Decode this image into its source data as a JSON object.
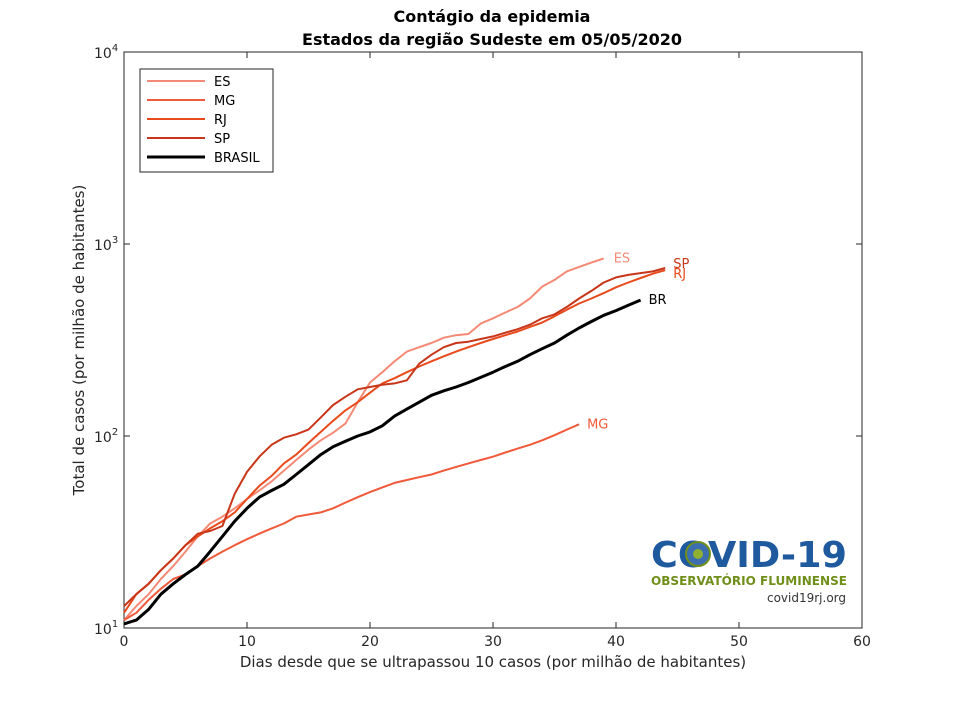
{
  "chart_data": {
    "type": "line",
    "title": "Contágio da epidemia",
    "subtitle": "Estados da região Sudeste em 05/05/2020",
    "xlabel": "Dias desde que se ultrapassou 10 casos (por milhão de habitantes)",
    "ylabel": "Total de casos (por milhão de habitantes)",
    "xlim": [
      0,
      60
    ],
    "ylim": [
      10,
      10000
    ],
    "yscale": "log",
    "grid": false,
    "legend_position": "top-left",
    "x_ticks": [
      "0",
      "10",
      "20",
      "30",
      "40",
      "50",
      "60"
    ],
    "y_tick_base": "10",
    "y_tick_exponents": [
      "1",
      "2",
      "3",
      "4"
    ],
    "series": [
      {
        "name": "ES",
        "end_label": "ES",
        "color": "#f48a76",
        "x": [
          0,
          1,
          2,
          3,
          4,
          5,
          6,
          7,
          8,
          9,
          10,
          11,
          12,
          13,
          14,
          15,
          16,
          17,
          18,
          19,
          20,
          21,
          22,
          23,
          24,
          25,
          26,
          27,
          28,
          29,
          30,
          31,
          32,
          33,
          34,
          35,
          36,
          37,
          38,
          39
        ],
        "y": [
          11,
          13,
          15,
          18,
          21,
          25,
          30,
          35,
          38,
          42,
          47,
          52,
          58,
          66,
          75,
          85,
          95,
          104,
          116,
          150,
          190,
          215,
          245,
          275,
          290,
          305,
          325,
          335,
          340,
          385,
          410,
          440,
          470,
          520,
          600,
          650,
          720,
          760,
          800,
          840
        ]
      },
      {
        "name": "MG",
        "end_label": "MG",
        "color": "#f0593a",
        "x": [
          0,
          1,
          2,
          3,
          4,
          5,
          6,
          7,
          8,
          9,
          10,
          11,
          12,
          13,
          14,
          15,
          16,
          17,
          18,
          19,
          20,
          21,
          22,
          23,
          24,
          25,
          26,
          27,
          28,
          29,
          30,
          31,
          32,
          33,
          34,
          35,
          36,
          37
        ],
        "y": [
          11,
          12,
          14,
          16,
          18,
          19,
          21,
          23,
          25,
          27,
          29,
          31,
          33,
          35,
          38,
          39,
          40,
          42,
          45,
          48,
          51,
          54,
          57,
          59,
          61,
          63,
          66,
          69,
          72,
          75,
          78,
          82,
          86,
          90,
          95,
          101,
          108,
          115
        ]
      },
      {
        "name": "RJ",
        "end_label": "RJ",
        "color": "#e84a1c",
        "x": [
          0,
          1,
          2,
          3,
          4,
          5,
          6,
          7,
          8,
          9,
          10,
          11,
          12,
          13,
          14,
          15,
          16,
          17,
          18,
          19,
          20,
          21,
          22,
          23,
          24,
          25,
          26,
          27,
          28,
          29,
          30,
          31,
          32,
          33,
          34,
          35,
          36,
          37,
          38,
          39,
          40,
          41,
          42,
          43,
          44
        ],
        "y": [
          12,
          15,
          17,
          20,
          23,
          27,
          30,
          33,
          36,
          40,
          47,
          55,
          62,
          72,
          80,
          92,
          105,
          120,
          136,
          150,
          168,
          188,
          200,
          215,
          230,
          245,
          260,
          275,
          290,
          305,
          320,
          335,
          350,
          370,
          390,
          420,
          455,
          490,
          520,
          555,
          595,
          630,
          665,
          700,
          730
        ]
      },
      {
        "name": "SP",
        "end_label": "SP",
        "color": "#c8361a",
        "x": [
          0,
          1,
          2,
          3,
          4,
          5,
          6,
          7,
          8,
          9,
          10,
          11,
          12,
          13,
          14,
          15,
          16,
          17,
          18,
          19,
          20,
          21,
          22,
          23,
          24,
          25,
          26,
          27,
          28,
          29,
          30,
          31,
          32,
          33,
          34,
          35,
          36,
          37,
          38,
          39,
          40,
          41,
          42,
          43,
          44
        ],
        "y": [
          13,
          15,
          17,
          20,
          23,
          27,
          31,
          32,
          34,
          50,
          65,
          78,
          90,
          98,
          102,
          108,
          125,
          145,
          160,
          175,
          180,
          185,
          188,
          195,
          238,
          265,
          290,
          305,
          310,
          320,
          330,
          345,
          360,
          380,
          410,
          430,
          470,
          520,
          570,
          630,
          670,
          690,
          705,
          720,
          750
        ]
      },
      {
        "name": "BRASIL",
        "end_label": "BR",
        "color": "#000000",
        "x": [
          0,
          1,
          2,
          3,
          4,
          5,
          6,
          7,
          8,
          9,
          10,
          11,
          12,
          13,
          14,
          15,
          16,
          17,
          18,
          19,
          20,
          21,
          22,
          23,
          24,
          25,
          26,
          27,
          28,
          29,
          30,
          31,
          32,
          33,
          34,
          35,
          36,
          37,
          38,
          39,
          40,
          41,
          42
        ],
        "y": [
          10.5,
          11,
          12.5,
          15,
          17,
          19,
          21,
          25,
          30,
          36,
          42,
          48,
          52,
          56,
          63,
          71,
          80,
          88,
          94,
          100,
          105,
          113,
          127,
          138,
          150,
          163,
          172,
          180,
          190,
          202,
          215,
          230,
          245,
          265,
          285,
          305,
          335,
          365,
          395,
          425,
          450,
          480,
          510
        ]
      }
    ]
  },
  "logo": {
    "title": "COVID-19",
    "subtitle": "OBSERVATÓRIO FLUMINENSE",
    "url": "covid19rj.org"
  }
}
